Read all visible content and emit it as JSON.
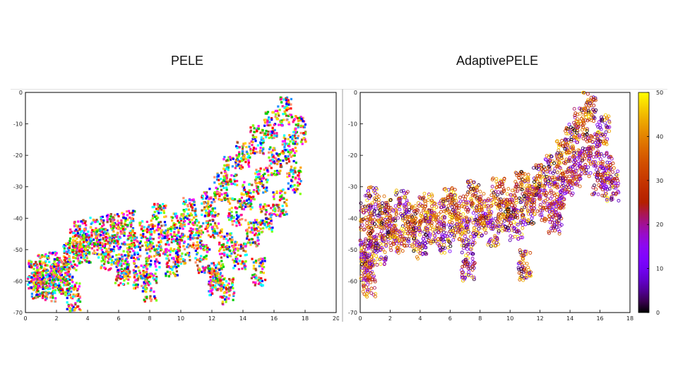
{
  "titles": {
    "left": "PELE",
    "right": "AdaptivePELE"
  },
  "chart_data": [
    {
      "type": "scatter",
      "title": "PELE",
      "xlabel": "",
      "ylabel": "",
      "xlim": [
        0,
        20
      ],
      "ylim": [
        -70,
        0
      ],
      "xticks": [
        "0",
        "2",
        "4",
        "6",
        "8",
        "10",
        "12",
        "14",
        "16",
        "18",
        "20"
      ],
      "yticks": [
        "0",
        "-10",
        "-20",
        "-30",
        "-40",
        "-50",
        "-60",
        "-70"
      ],
      "grid": false,
      "colors": [
        "#ff0000",
        "#00cc00",
        "#0000ff",
        "#ff00ff",
        "#00ffff",
        "#ffa500",
        "#ff8c69",
        "#a0522d",
        "#7fff00",
        "#ff1493",
        "#1e90ff",
        "#ffd700"
      ],
      "points": [
        {
          "x": 0.6,
          "y": -58
        },
        {
          "x": 0.8,
          "y": -61
        },
        {
          "x": 1.0,
          "y": -56
        },
        {
          "x": 1.2,
          "y": -60
        },
        {
          "x": 1.5,
          "y": -62
        },
        {
          "x": 1.8,
          "y": -55
        },
        {
          "x": 2.0,
          "y": -59
        },
        {
          "x": 2.3,
          "y": -57
        },
        {
          "x": 2.6,
          "y": -60
        },
        {
          "x": 2.9,
          "y": -52
        },
        {
          "x": 3.2,
          "y": -48
        },
        {
          "x": 3.1,
          "y": -65
        },
        {
          "x": 3.5,
          "y": -45
        },
        {
          "x": 3.8,
          "y": -50
        },
        {
          "x": 4.2,
          "y": -47
        },
        {
          "x": 4.6,
          "y": -44
        },
        {
          "x": 5.0,
          "y": -48
        },
        {
          "x": 5.3,
          "y": -52
        },
        {
          "x": 5.6,
          "y": -43
        },
        {
          "x": 6.0,
          "y": -46
        },
        {
          "x": 6.3,
          "y": -55
        },
        {
          "x": 6.6,
          "y": -42
        },
        {
          "x": 7.0,
          "y": -49
        },
        {
          "x": 7.4,
          "y": -58
        },
        {
          "x": 7.8,
          "y": -45
        },
        {
          "x": 8.2,
          "y": -52
        },
        {
          "x": 8.6,
          "y": -40
        },
        {
          "x": 9.0,
          "y": -47
        },
        {
          "x": 9.4,
          "y": -54
        },
        {
          "x": 9.8,
          "y": -43
        },
        {
          "x": 10.2,
          "y": -50
        },
        {
          "x": 10.6,
          "y": -38
        },
        {
          "x": 11.0,
          "y": -45
        },
        {
          "x": 11.4,
          "y": -53
        },
        {
          "x": 11.8,
          "y": -35
        },
        {
          "x": 12.0,
          "y": -42
        },
        {
          "x": 12.3,
          "y": -58
        },
        {
          "x": 12.6,
          "y": -30
        },
        {
          "x": 12.9,
          "y": -48
        },
        {
          "x": 13.2,
          "y": -25
        },
        {
          "x": 13.5,
          "y": -38
        },
        {
          "x": 13.8,
          "y": -52
        },
        {
          "x": 14.0,
          "y": -20
        },
        {
          "x": 14.3,
          "y": -33
        },
        {
          "x": 14.6,
          "y": -45
        },
        {
          "x": 14.9,
          "y": -15
        },
        {
          "x": 15.2,
          "y": -28
        },
        {
          "x": 15.5,
          "y": -40
        },
        {
          "x": 15.8,
          "y": -10
        },
        {
          "x": 16.1,
          "y": -22
        },
        {
          "x": 16.4,
          "y": -35
        },
        {
          "x": 16.7,
          "y": -6
        },
        {
          "x": 17.0,
          "y": -18
        },
        {
          "x": 17.3,
          "y": -28
        },
        {
          "x": 17.6,
          "y": -12
        },
        {
          "x": 13.0,
          "y": -63
        },
        {
          "x": 12.2,
          "y": -60
        },
        {
          "x": 6.2,
          "y": -57
        },
        {
          "x": 8.0,
          "y": -62
        },
        {
          "x": 15.0,
          "y": -57
        }
      ]
    },
    {
      "type": "scatter",
      "title": "AdaptivePELE",
      "xlabel": "",
      "ylabel": "",
      "xlim": [
        0,
        18
      ],
      "ylim": [
        -70,
        0
      ],
      "xticks": [
        "0",
        "2",
        "4",
        "6",
        "8",
        "10",
        "12",
        "14",
        "16",
        "18"
      ],
      "yticks": [
        "0",
        "-10",
        "-20",
        "-30",
        "-40",
        "-50",
        "-60",
        "-70"
      ],
      "grid": false,
      "colorbar": {
        "min": 0,
        "max": 50,
        "ticks": [
          "0",
          "10",
          "20",
          "30",
          "40",
          "50"
        ],
        "colormap": "gnuplot"
      },
      "points": [
        {
          "x": 0.3,
          "y": -40,
          "c": 20
        },
        {
          "x": 0.5,
          "y": -55,
          "c": 12
        },
        {
          "x": 0.8,
          "y": -35,
          "c": 35
        },
        {
          "x": 1.0,
          "y": -45,
          "c": 18
        },
        {
          "x": 1.3,
          "y": -50,
          "c": 40
        },
        {
          "x": 1.6,
          "y": -38,
          "c": 22
        },
        {
          "x": 2.0,
          "y": -42,
          "c": 30
        },
        {
          "x": 2.4,
          "y": -47,
          "c": 15
        },
        {
          "x": 2.8,
          "y": -36,
          "c": 45
        },
        {
          "x": 3.2,
          "y": -44,
          "c": 25
        },
        {
          "x": 3.6,
          "y": -40,
          "c": 19
        },
        {
          "x": 4.0,
          "y": -48,
          "c": 38
        },
        {
          "x": 4.4,
          "y": -37,
          "c": 21
        },
        {
          "x": 4.8,
          "y": -43,
          "c": 33
        },
        {
          "x": 5.2,
          "y": -39,
          "c": 17
        },
        {
          "x": 5.6,
          "y": -46,
          "c": 42
        },
        {
          "x": 6.0,
          "y": -35,
          "c": 24
        },
        {
          "x": 6.4,
          "y": -42,
          "c": 29
        },
        {
          "x": 6.8,
          "y": -38,
          "c": 16
        },
        {
          "x": 7.2,
          "y": -45,
          "c": 36
        },
        {
          "x": 7.6,
          "y": -33,
          "c": 23
        },
        {
          "x": 8.0,
          "y": -41,
          "c": 31
        },
        {
          "x": 8.4,
          "y": -37,
          "c": 14
        },
        {
          "x": 8.8,
          "y": -44,
          "c": 40
        },
        {
          "x": 9.2,
          "y": -32,
          "c": 20
        },
        {
          "x": 9.6,
          "y": -39,
          "c": 27
        },
        {
          "x": 10.0,
          "y": -35,
          "c": 18
        },
        {
          "x": 10.4,
          "y": -42,
          "c": 44
        },
        {
          "x": 10.8,
          "y": -30,
          "c": 22
        },
        {
          "x": 11.2,
          "y": -37,
          "c": 34
        },
        {
          "x": 11.6,
          "y": -33,
          "c": 15
        },
        {
          "x": 12.0,
          "y": -28,
          "c": 26
        },
        {
          "x": 12.4,
          "y": -36,
          "c": 9
        },
        {
          "x": 12.8,
          "y": -25,
          "c": 38
        },
        {
          "x": 13.2,
          "y": -32,
          "c": 12
        },
        {
          "x": 13.5,
          "y": -20,
          "c": 21
        },
        {
          "x": 13.8,
          "y": -29,
          "c": 5
        },
        {
          "x": 14.1,
          "y": -15,
          "c": 30
        },
        {
          "x": 14.4,
          "y": -25,
          "c": 8
        },
        {
          "x": 14.7,
          "y": -10,
          "c": 18
        },
        {
          "x": 15.0,
          "y": -22,
          "c": 3
        },
        {
          "x": 15.3,
          "y": -5,
          "c": 24
        },
        {
          "x": 15.6,
          "y": -18,
          "c": 10
        },
        {
          "x": 15.9,
          "y": -28,
          "c": 2
        },
        {
          "x": 16.2,
          "y": -12,
          "c": 35
        },
        {
          "x": 16.5,
          "y": -24,
          "c": 6
        },
        {
          "x": 16.8,
          "y": -30,
          "c": 45
        },
        {
          "x": 13.0,
          "y": -40,
          "c": 4
        },
        {
          "x": 11.0,
          "y": -55,
          "c": 28
        },
        {
          "x": 7.2,
          "y": -55,
          "c": 48
        },
        {
          "x": 0.6,
          "y": -60,
          "c": 14
        },
        {
          "x": 0.4,
          "y": -50,
          "c": 47
        }
      ]
    }
  ]
}
